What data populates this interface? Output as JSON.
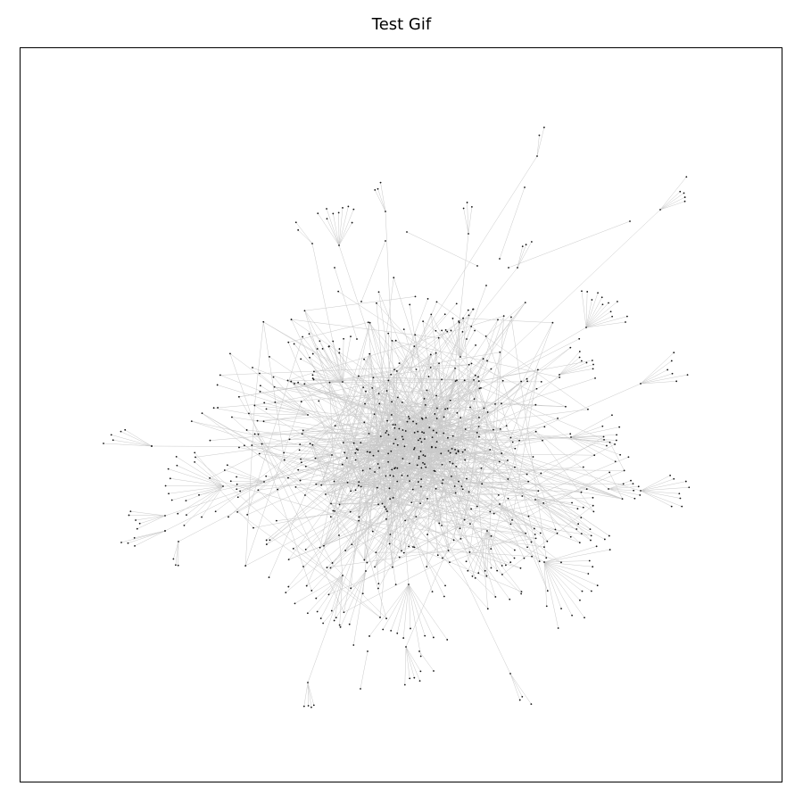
{
  "figure": {
    "title": "Test Gif"
  },
  "graph": {
    "node_color": "#111111",
    "edge_color": "#c9c9c9",
    "axes_visible": false,
    "frame": true
  }
}
